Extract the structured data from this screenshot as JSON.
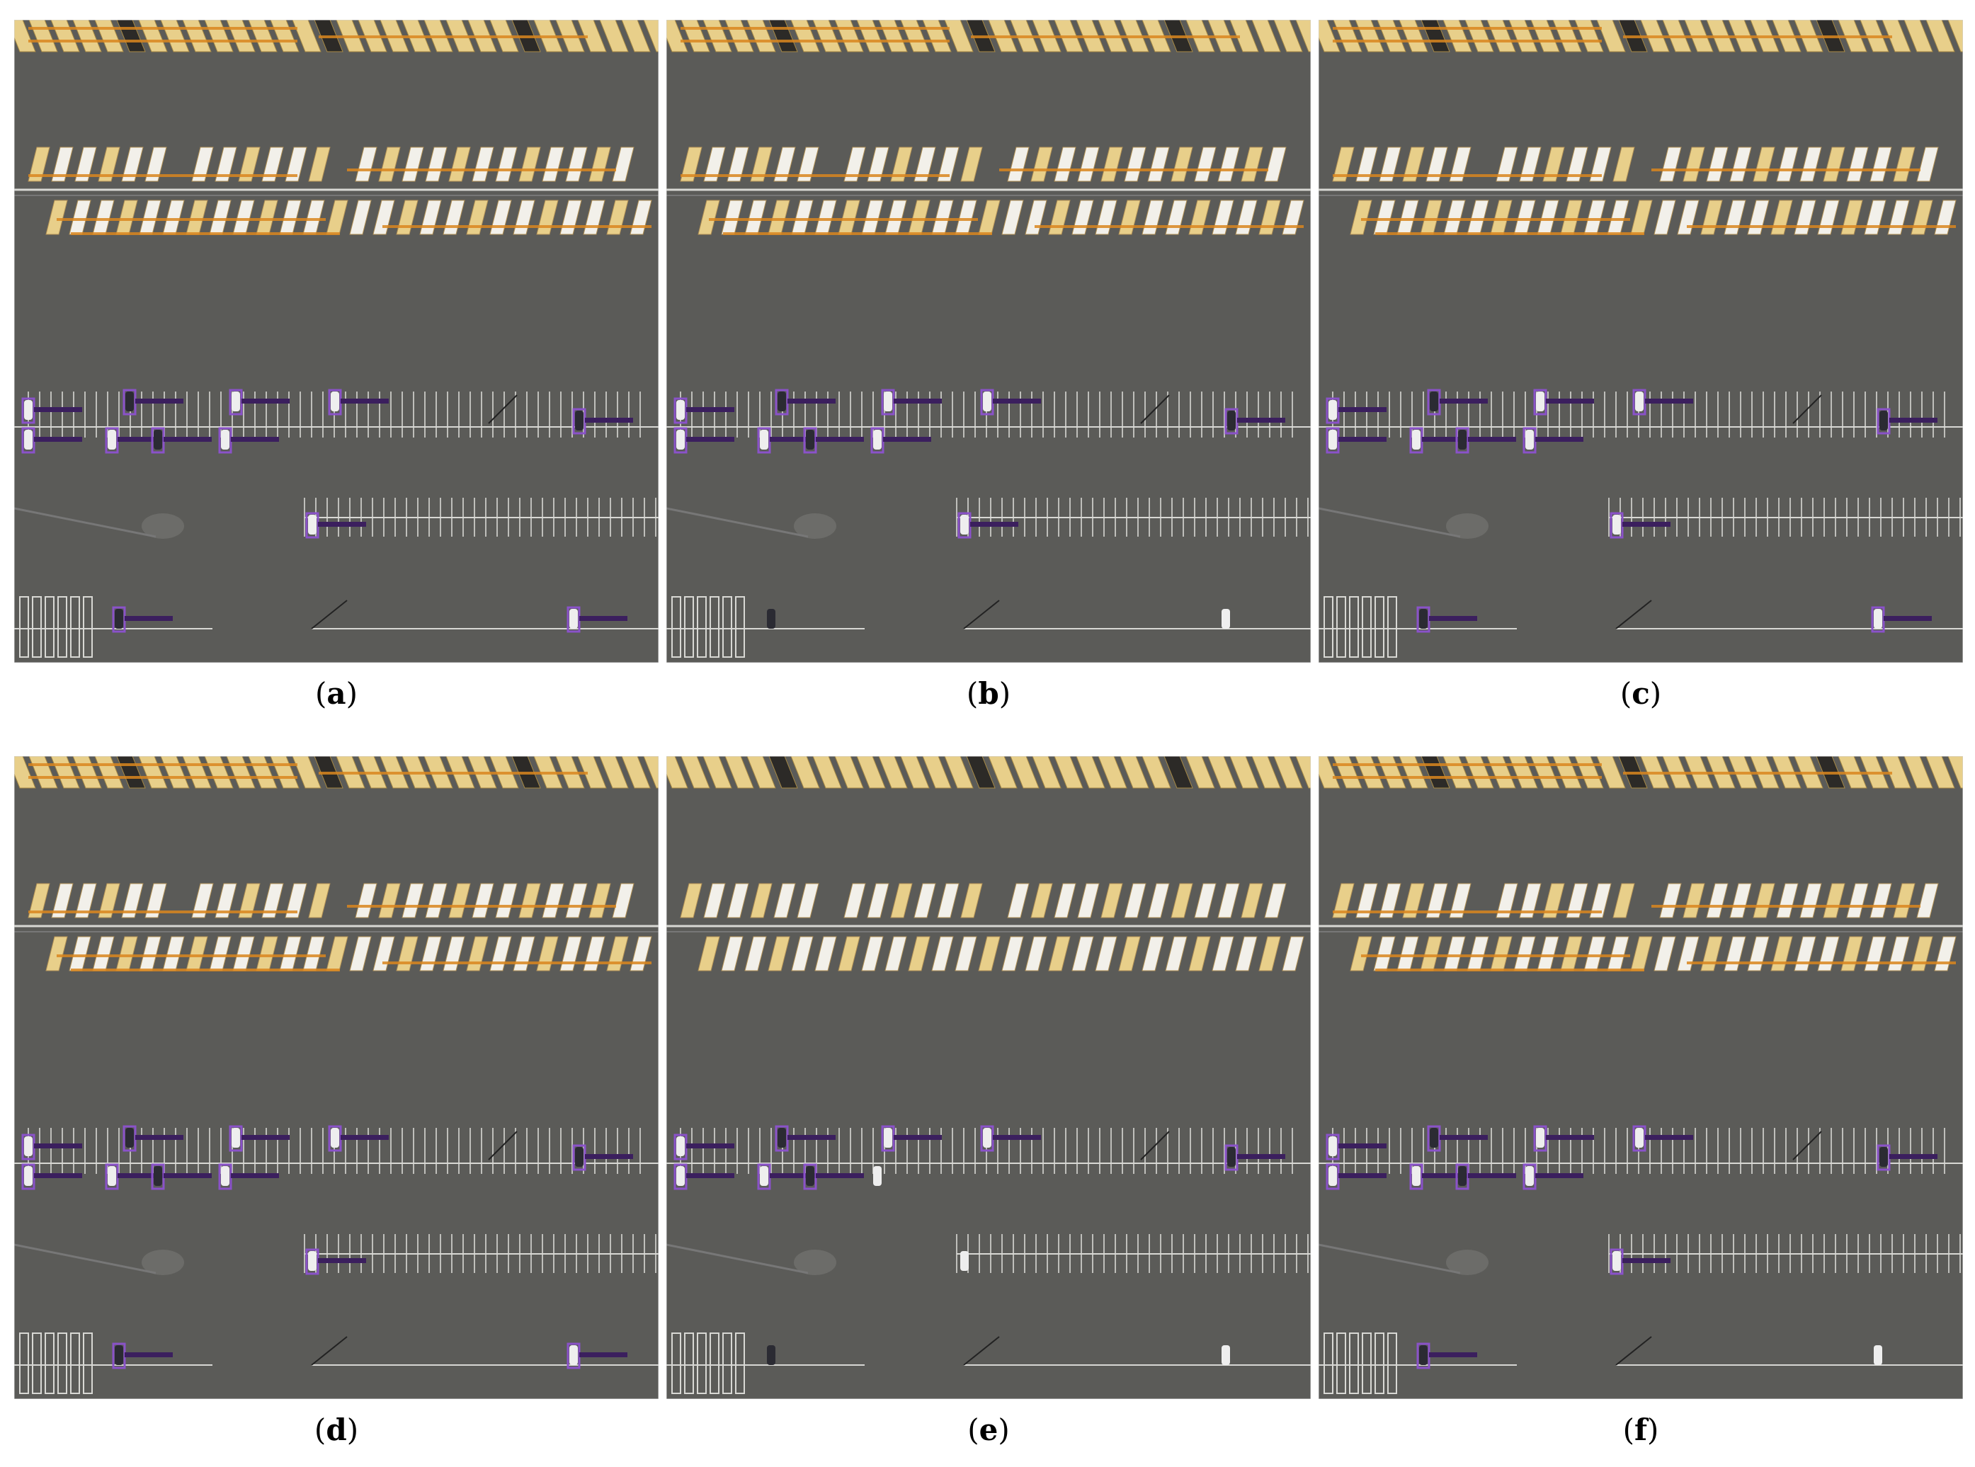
{
  "figure": {
    "panels": [
      {
        "id": "a",
        "caption_prefix": "(",
        "caption_letter": "a",
        "caption_suffix": ")",
        "car_boxes": 12,
        "bus_boxes": true
      },
      {
        "id": "b",
        "caption_prefix": "(",
        "caption_letter": "b",
        "caption_suffix": ")",
        "car_boxes": 10,
        "bus_boxes": true
      },
      {
        "id": "c",
        "caption_prefix": "(",
        "caption_letter": "c",
        "caption_suffix": ")",
        "car_boxes": 12,
        "bus_boxes": true
      },
      {
        "id": "d",
        "caption_prefix": "(",
        "caption_letter": "d",
        "caption_suffix": ")",
        "car_boxes": 12,
        "bus_boxes": true
      },
      {
        "id": "e",
        "caption_prefix": "(",
        "caption_letter": "e",
        "caption_suffix": ")",
        "car_boxes": 8,
        "bus_boxes": false
      },
      {
        "id": "f",
        "caption_prefix": "(",
        "caption_letter": "f",
        "caption_suffix": ")",
        "car_boxes": 11,
        "bus_boxes": true
      }
    ],
    "colors": {
      "asphalt": "#5b5b58",
      "bus_roof": "#e8cf8a",
      "bus_white": "#f2f0ea",
      "bus_box": "#d9861f",
      "car_box": "#8a52c9",
      "car_label": "#3b1f5e",
      "lane_line": "#d8d8d4"
    }
  }
}
